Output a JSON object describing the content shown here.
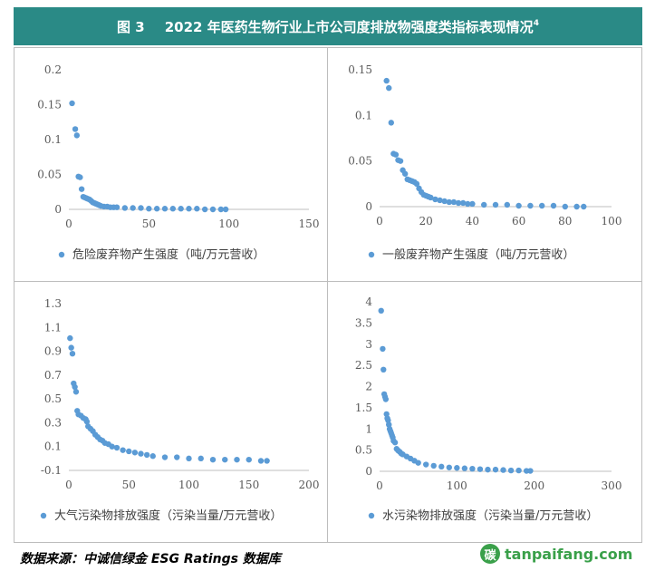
{
  "header": {
    "figure_label": "图 3",
    "title": "2022 年医药生物行业上市公司度排放物强度类指标表现情况",
    "footnote_mark": "4",
    "background_color": "#2a8a86"
  },
  "source_text": "数据来源：中诚信绿金 ESG Ratings 数据库",
  "watermark": {
    "text": "tanpaifang.com",
    "mark": "碳",
    "color": "#3aa04a"
  },
  "marker_color": "#5b9bd5",
  "chart_data": [
    {
      "type": "scatter",
      "legend": "危险废弃物产生强度（吨/万元营收）",
      "xlim": [
        0,
        150
      ],
      "ylim": [
        0,
        0.2
      ],
      "x_ticks": [
        "0",
        "50",
        "100",
        "150"
      ],
      "y_ticks": [
        "0",
        "0.05",
        "0.1",
        "0.15",
        "0.2"
      ],
      "x": [
        2,
        4,
        5,
        6,
        7,
        8,
        9,
        10,
        11,
        12,
        13,
        14,
        15,
        16,
        17,
        18,
        19,
        20,
        22,
        24,
        26,
        28,
        30,
        35,
        40,
        45,
        50,
        55,
        60,
        65,
        70,
        75,
        80,
        85,
        90,
        95,
        98
      ],
      "y": [
        0.152,
        0.115,
        0.106,
        0.047,
        0.046,
        0.029,
        0.018,
        0.017,
        0.016,
        0.015,
        0.014,
        0.012,
        0.01,
        0.009,
        0.008,
        0.007,
        0.006,
        0.005,
        0.004,
        0.004,
        0.003,
        0.003,
        0.003,
        0.002,
        0.002,
        0.002,
        0.001,
        0.001,
        0.001,
        0.001,
        0.001,
        0.001,
        0.001,
        0.0,
        0.0,
        0.0,
        0.0
      ]
    },
    {
      "type": "scatter",
      "legend": "一般废弃物产生强度（吨/万元营收）",
      "xlim": [
        0,
        100
      ],
      "ylim": [
        0,
        0.15
      ],
      "x_ticks": [
        "0",
        "20",
        "40",
        "60",
        "80",
        "100"
      ],
      "y_ticks": [
        "0",
        "0.05",
        "0.1",
        "0.15"
      ],
      "x": [
        3,
        4,
        5,
        6,
        7,
        8,
        9,
        10,
        11,
        12,
        13,
        14,
        15,
        16,
        17,
        18,
        19,
        20,
        21,
        22,
        24,
        26,
        28,
        30,
        32,
        34,
        36,
        38,
        40,
        45,
        50,
        55,
        60,
        65,
        70,
        75,
        80,
        85,
        88
      ],
      "y": [
        0.138,
        0.13,
        0.092,
        0.058,
        0.057,
        0.051,
        0.05,
        0.04,
        0.036,
        0.03,
        0.029,
        0.028,
        0.027,
        0.025,
        0.02,
        0.016,
        0.013,
        0.012,
        0.011,
        0.01,
        0.008,
        0.007,
        0.006,
        0.005,
        0.005,
        0.004,
        0.004,
        0.003,
        0.003,
        0.002,
        0.002,
        0.002,
        0.001,
        0.001,
        0.001,
        0.001,
        0.0,
        0.0,
        0.0
      ]
    },
    {
      "type": "scatter",
      "legend": "大气污染物排放强度（污染当量/万元营收）",
      "xlim": [
        0,
        200
      ],
      "ylim": [
        -0.1,
        1.3
      ],
      "x_ticks": [
        "0",
        "50",
        "100",
        "150",
        "200"
      ],
      "y_ticks": [
        "-0.1",
        "0.1",
        "0.3",
        "0.5",
        "0.7",
        "0.9",
        "1.1",
        "1.3"
      ],
      "x": [
        1,
        2,
        3,
        4,
        5,
        6,
        7,
        8,
        10,
        12,
        14,
        15,
        16,
        18,
        20,
        22,
        24,
        26,
        28,
        30,
        33,
        36,
        40,
        45,
        50,
        55,
        60,
        65,
        70,
        80,
        90,
        100,
        110,
        120,
        130,
        140,
        150,
        160,
        165
      ],
      "y": [
        1.01,
        0.93,
        0.88,
        0.63,
        0.6,
        0.56,
        0.4,
        0.37,
        0.36,
        0.34,
        0.33,
        0.31,
        0.27,
        0.25,
        0.23,
        0.2,
        0.18,
        0.16,
        0.15,
        0.13,
        0.12,
        0.1,
        0.09,
        0.07,
        0.06,
        0.05,
        0.04,
        0.03,
        0.02,
        0.01,
        0.01,
        0.0,
        0.0,
        -0.01,
        -0.01,
        -0.01,
        -0.01,
        -0.02,
        -0.02
      ]
    },
    {
      "type": "scatter",
      "legend": "水污染物排放强度（污染当量/万元营收）",
      "xlim": [
        0,
        300
      ],
      "ylim": [
        0,
        4
      ],
      "x_ticks": [
        "0",
        "100",
        "200",
        "300"
      ],
      "y_ticks": [
        "0",
        "0.5",
        "1",
        "1.5",
        "2",
        "2.5",
        "3",
        "3.5",
        "4"
      ],
      "x": [
        2,
        4,
        5,
        6,
        7,
        8,
        9,
        10,
        11,
        12,
        13,
        14,
        15,
        16,
        17,
        18,
        20,
        22,
        24,
        26,
        28,
        30,
        35,
        40,
        45,
        50,
        60,
        70,
        80,
        90,
        100,
        110,
        120,
        130,
        140,
        150,
        160,
        170,
        180,
        190,
        195
      ],
      "y": [
        3.79,
        2.89,
        2.4,
        1.82,
        1.76,
        1.7,
        1.35,
        1.25,
        1.2,
        1.1,
        1.0,
        0.95,
        0.9,
        0.85,
        0.8,
        0.72,
        0.68,
        0.53,
        0.49,
        0.46,
        0.42,
        0.4,
        0.35,
        0.3,
        0.25,
        0.2,
        0.16,
        0.13,
        0.11,
        0.09,
        0.08,
        0.07,
        0.06,
        0.05,
        0.04,
        0.04,
        0.03,
        0.02,
        0.02,
        0.01,
        0.01
      ]
    }
  ]
}
